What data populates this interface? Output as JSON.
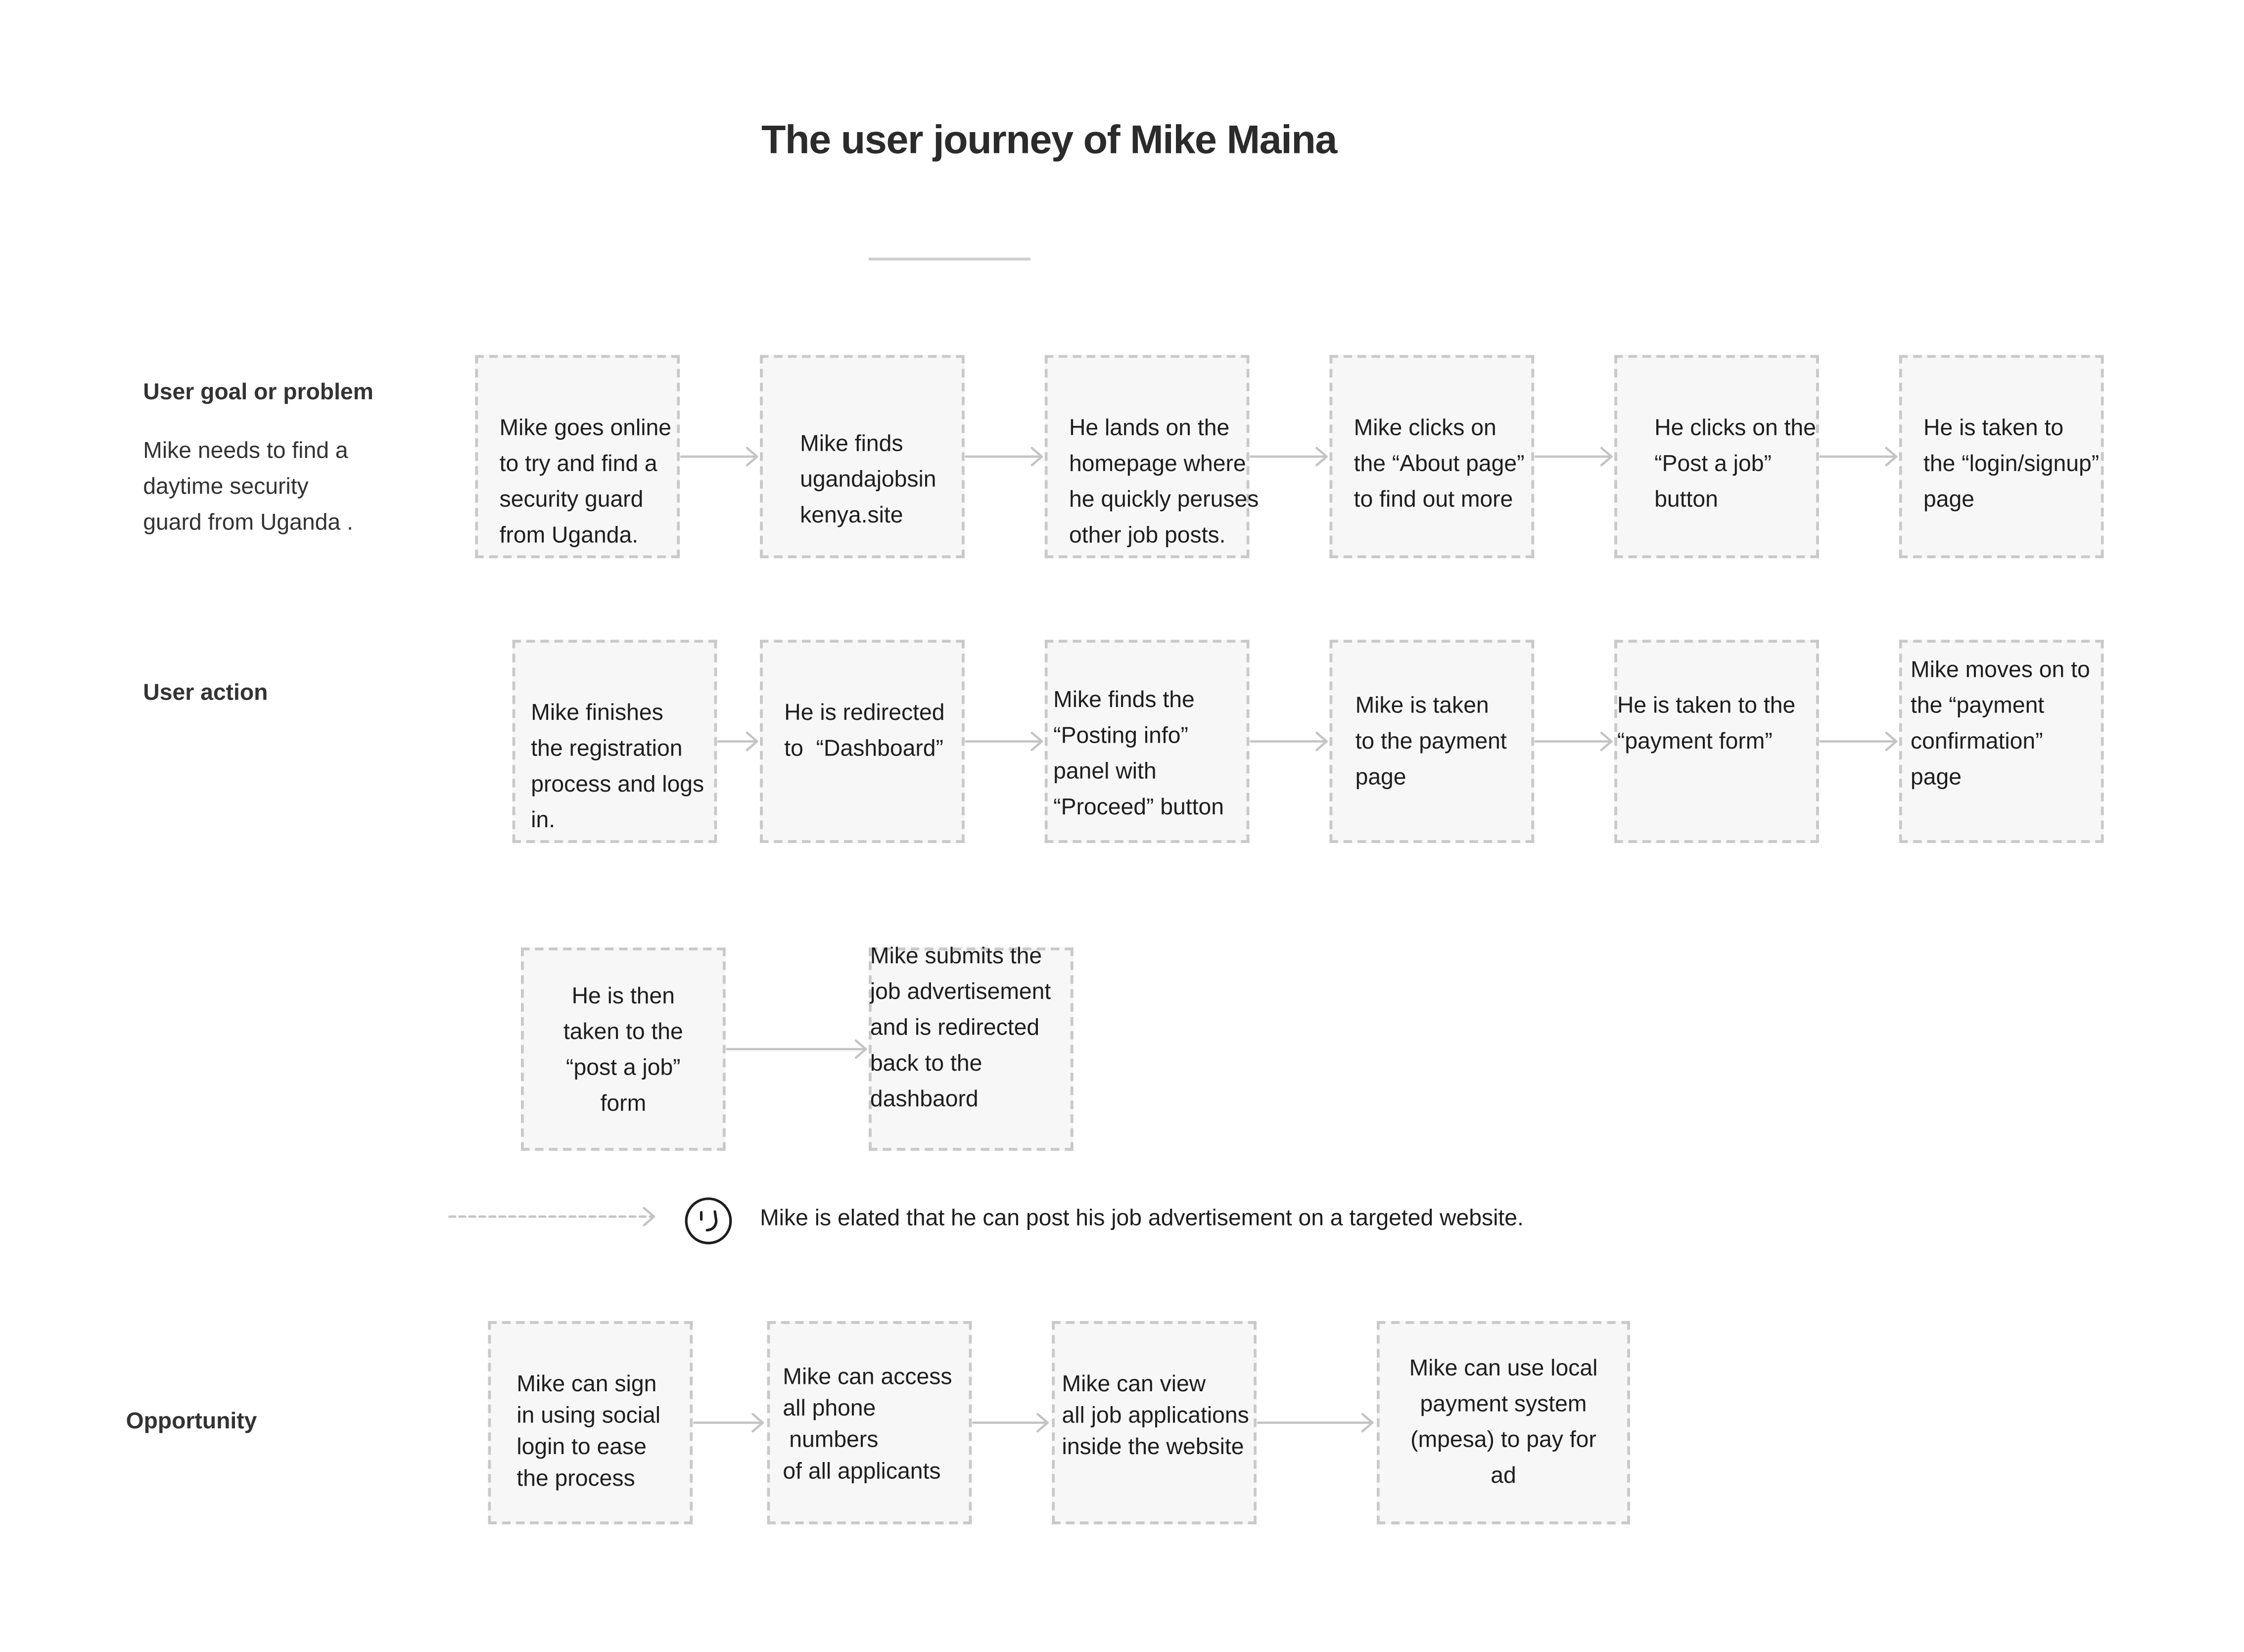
{
  "title": "The user journey of Mike Maina",
  "rows": {
    "goal": {
      "label": "User goal or problem",
      "description": "Mike needs to find a\ndaytime security\nguard from Uganda ."
    },
    "action": {
      "label": "User action"
    },
    "opportunity": {
      "label": "Opportunity"
    }
  },
  "steps": {
    "goal": [
      "Mike goes online\nto try and find a\nsecurity guard\nfrom Uganda.",
      "Mike finds\nugandajobsin\nkenya.site",
      "He lands on the\nhomepage where\nhe quickly peruses\nother job posts.",
      "Mike clicks on\nthe “About page”\nto find out more",
      "He clicks on the\n“Post a job”\nbutton",
      "He is taken to\nthe “login/signup”\npage"
    ],
    "action": [
      "Mike finishes\nthe registration\nprocess and logs\nin.",
      "He is redirected\nto  “Dashboard”",
      "Mike finds the\n“Posting info”\npanel with\n“Proceed” button",
      "Mike is taken\nto the payment\npage",
      "He is taken to the\n“payment form”",
      "Mike moves on to\nthe “payment\nconfirmation”\npage"
    ],
    "action_cont": [
      "He is then\ntaken to the\n“post a job”\nform",
      "Mike submits the\njob advertisement\nand is redirected\nback to the\ndashbaord"
    ]
  },
  "emotion": {
    "icon": "smiley-face-icon",
    "text": "Mike is elated that he can post his job advertisement on a targeted website."
  },
  "opportunities": [
    "Mike can sign\nin using social\nlogin to ease\nthe process",
    "Mike can access\nall phone\n numbers\nof all applicants",
    "Mike can view\nall job applications\ninside the website",
    "Mike can use local\npayment system\n(mpesa) to pay for\nad"
  ],
  "colors": {
    "box_fill": "#f7f7f7",
    "box_border": "#c9c9c9",
    "arrow": "#c4c4c4",
    "text": "#1e1e1e"
  }
}
